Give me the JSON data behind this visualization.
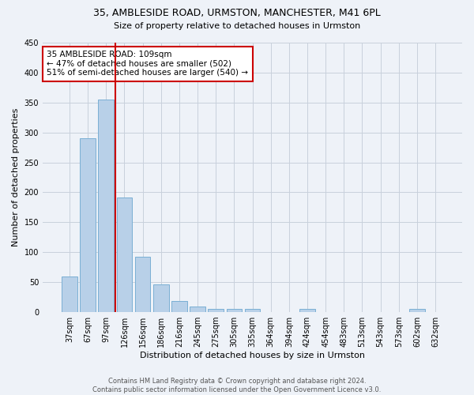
{
  "title": "35, AMBLESIDE ROAD, URMSTON, MANCHESTER, M41 6PL",
  "subtitle": "Size of property relative to detached houses in Urmston",
  "xlabel": "Distribution of detached houses by size in Urmston",
  "ylabel": "Number of detached properties",
  "footer_line1": "Contains HM Land Registry data © Crown copyright and database right 2024.",
  "footer_line2": "Contains public sector information licensed under the Open Government Licence v3.0.",
  "categories": [
    "37sqm",
    "67sqm",
    "97sqm",
    "126sqm",
    "156sqm",
    "186sqm",
    "216sqm",
    "245sqm",
    "275sqm",
    "305sqm",
    "335sqm",
    "364sqm",
    "394sqm",
    "424sqm",
    "454sqm",
    "483sqm",
    "513sqm",
    "543sqm",
    "573sqm",
    "602sqm",
    "632sqm"
  ],
  "values": [
    59,
    290,
    355,
    192,
    92,
    46,
    19,
    9,
    5,
    5,
    5,
    0,
    0,
    5,
    0,
    0,
    0,
    0,
    0,
    5,
    0
  ],
  "bar_color": "#b8d0e8",
  "bar_edge_color": "#7aafd4",
  "bg_color": "#eef2f8",
  "grid_color": "#c8d0dc",
  "vline_x_index": 2,
  "vline_color": "#cc0000",
  "annotation_line1": "35 AMBLESIDE ROAD: 109sqm",
  "annotation_line2": "← 47% of detached houses are smaller (502)",
  "annotation_line3": "51% of semi-detached houses are larger (540) →",
  "annotation_box_color": "#cc0000",
  "ylim": [
    0,
    450
  ],
  "yticks": [
    0,
    50,
    100,
    150,
    200,
    250,
    300,
    350,
    400,
    450
  ],
  "title_fontsize": 9,
  "subtitle_fontsize": 8,
  "ylabel_fontsize": 8,
  "xlabel_fontsize": 8,
  "tick_fontsize": 7,
  "annotation_fontsize": 7.5
}
